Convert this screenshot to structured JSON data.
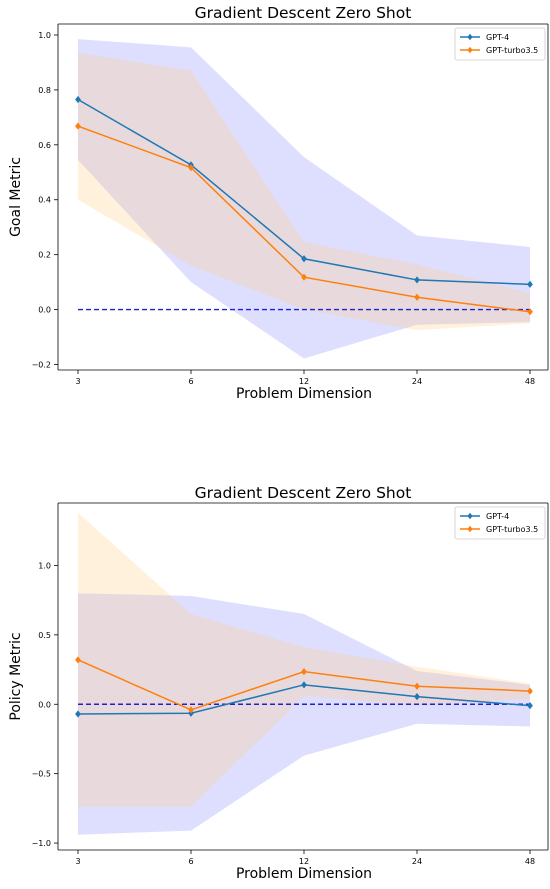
{
  "chart_data": [
    {
      "type": "line",
      "title": "Gradient Descent Zero Shot",
      "xlabel": "Problem Dimension",
      "ylabel": "Goal Metric",
      "categories": [
        "3",
        "6",
        "12",
        "24",
        "48"
      ],
      "ylim": [
        -0.22,
        1.04
      ],
      "yticks": [
        -0.2,
        0.0,
        0.2,
        0.4,
        0.6,
        0.8,
        1.0
      ],
      "ytick_labels": [
        "−0.2",
        "0.0",
        "0.2",
        "0.4",
        "0.6",
        "0.8",
        "1.0"
      ],
      "legend_position": "top-right",
      "reference_line": {
        "value": 0.0,
        "style": "dashed",
        "color": "#1f1fd4"
      },
      "series": [
        {
          "name": "GPT-4",
          "color": "#1f77b4",
          "band_color": "#6b6bff",
          "values": [
            0.765,
            0.527,
            0.185,
            0.108,
            0.092
          ],
          "upper": [
            0.985,
            0.955,
            0.555,
            0.27,
            0.228
          ],
          "lower": [
            0.545,
            0.1,
            -0.178,
            -0.055,
            -0.045
          ]
        },
        {
          "name": "GPT-turbo3.5",
          "color": "#ff7f0e",
          "band_color": "#ffd08a",
          "values": [
            0.668,
            0.517,
            0.118,
            0.045,
            -0.008
          ],
          "upper": [
            0.935,
            0.87,
            0.245,
            0.165,
            0.06
          ],
          "lower": [
            0.4,
            0.16,
            0.0,
            -0.075,
            -0.05
          ]
        }
      ]
    },
    {
      "type": "line",
      "title": "Gradient Descent Zero Shot",
      "xlabel": "Problem Dimension",
      "ylabel": "Policy Metric",
      "categories": [
        "3",
        "6",
        "12",
        "24",
        "48"
      ],
      "ylim": [
        -1.05,
        1.45
      ],
      "yticks": [
        -1.0,
        -0.5,
        0.0,
        0.5,
        1.0
      ],
      "ytick_labels": [
        "−1.0",
        "−0.5",
        "0.0",
        "0.5",
        "1.0"
      ],
      "legend_position": "top-right",
      "reference_line": {
        "value": 0.0,
        "style": "dashed",
        "color": "#1f1fd4"
      },
      "series": [
        {
          "name": "GPT-4",
          "color": "#1f77b4",
          "band_color": "#6b6bff",
          "values": [
            -0.07,
            -0.065,
            0.14,
            0.055,
            -0.01
          ],
          "upper": [
            0.8,
            0.78,
            0.65,
            0.24,
            0.14
          ],
          "lower": [
            -0.94,
            -0.91,
            -0.37,
            -0.14,
            -0.16
          ]
        },
        {
          "name": "GPT-turbo3.5",
          "color": "#ff7f0e",
          "band_color": "#ffd08a",
          "values": [
            0.32,
            -0.04,
            0.235,
            0.13,
            0.095
          ],
          "upper": [
            1.38,
            0.65,
            0.41,
            0.27,
            0.15
          ],
          "lower": [
            -0.74,
            -0.74,
            0.06,
            -0.01,
            0.04
          ]
        }
      ]
    }
  ]
}
